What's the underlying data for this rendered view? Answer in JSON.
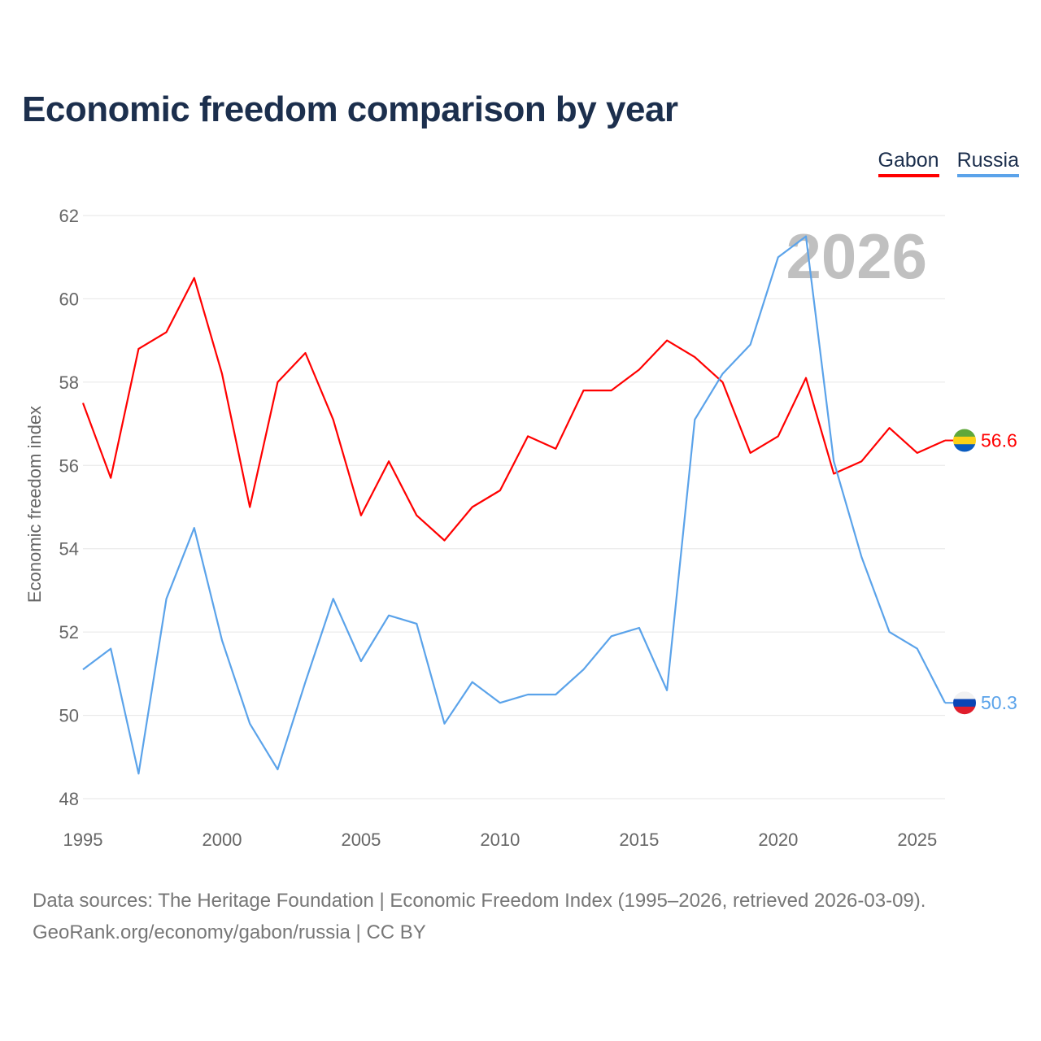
{
  "title": "Economic freedom comparison by year",
  "footer": {
    "line1": "Data sources: The Heritage Foundation | Economic Freedom Index (1995–2026, retrieved 2026-03-09).",
    "line2": "GeoRank.org/economy/gabon/russia | CC BY"
  },
  "chart_data": {
    "type": "line",
    "title": "Economic freedom comparison by year",
    "xlabel": "",
    "ylabel": "Economic freedom index",
    "watermark_year": "2026",
    "xlim": [
      1995,
      2026
    ],
    "ylim": [
      48,
      62
    ],
    "yticks": [
      48,
      50,
      52,
      54,
      56,
      58,
      60,
      62
    ],
    "xticks": [
      1995,
      2000,
      2005,
      2010,
      2015,
      2020,
      2025
    ],
    "grid": true,
    "legend_position": "top-right",
    "x": [
      1995,
      1996,
      1997,
      1998,
      1999,
      2000,
      2001,
      2002,
      2003,
      2004,
      2005,
      2006,
      2007,
      2008,
      2009,
      2010,
      2011,
      2012,
      2013,
      2014,
      2015,
      2016,
      2017,
      2018,
      2019,
      2020,
      2021,
      2022,
      2023,
      2024,
      2025,
      2026
    ],
    "series": [
      {
        "name": "Gabon",
        "color": "#ff0000",
        "end_label": "56.6",
        "flag": "gabon-flag",
        "values": [
          57.5,
          55.7,
          58.8,
          59.2,
          60.5,
          58.2,
          55.0,
          58.0,
          58.7,
          57.1,
          54.8,
          56.1,
          54.8,
          54.2,
          55.0,
          55.4,
          56.7,
          56.4,
          57.8,
          57.8,
          58.3,
          59.0,
          58.6,
          58.0,
          56.3,
          56.7,
          58.1,
          55.8,
          56.1,
          56.9,
          56.3,
          56.6
        ]
      },
      {
        "name": "Russia",
        "color": "#5ba3ea",
        "end_label": "50.3",
        "flag": "russia-flag",
        "values": [
          51.1,
          51.6,
          48.6,
          52.8,
          54.5,
          51.8,
          49.8,
          48.7,
          50.8,
          52.8,
          51.3,
          52.4,
          52.2,
          49.8,
          50.8,
          50.3,
          50.5,
          50.5,
          51.1,
          51.9,
          52.1,
          50.6,
          57.1,
          58.2,
          58.9,
          61.0,
          61.5,
          56.1,
          53.8,
          52.0,
          51.6,
          50.3
        ]
      }
    ]
  }
}
